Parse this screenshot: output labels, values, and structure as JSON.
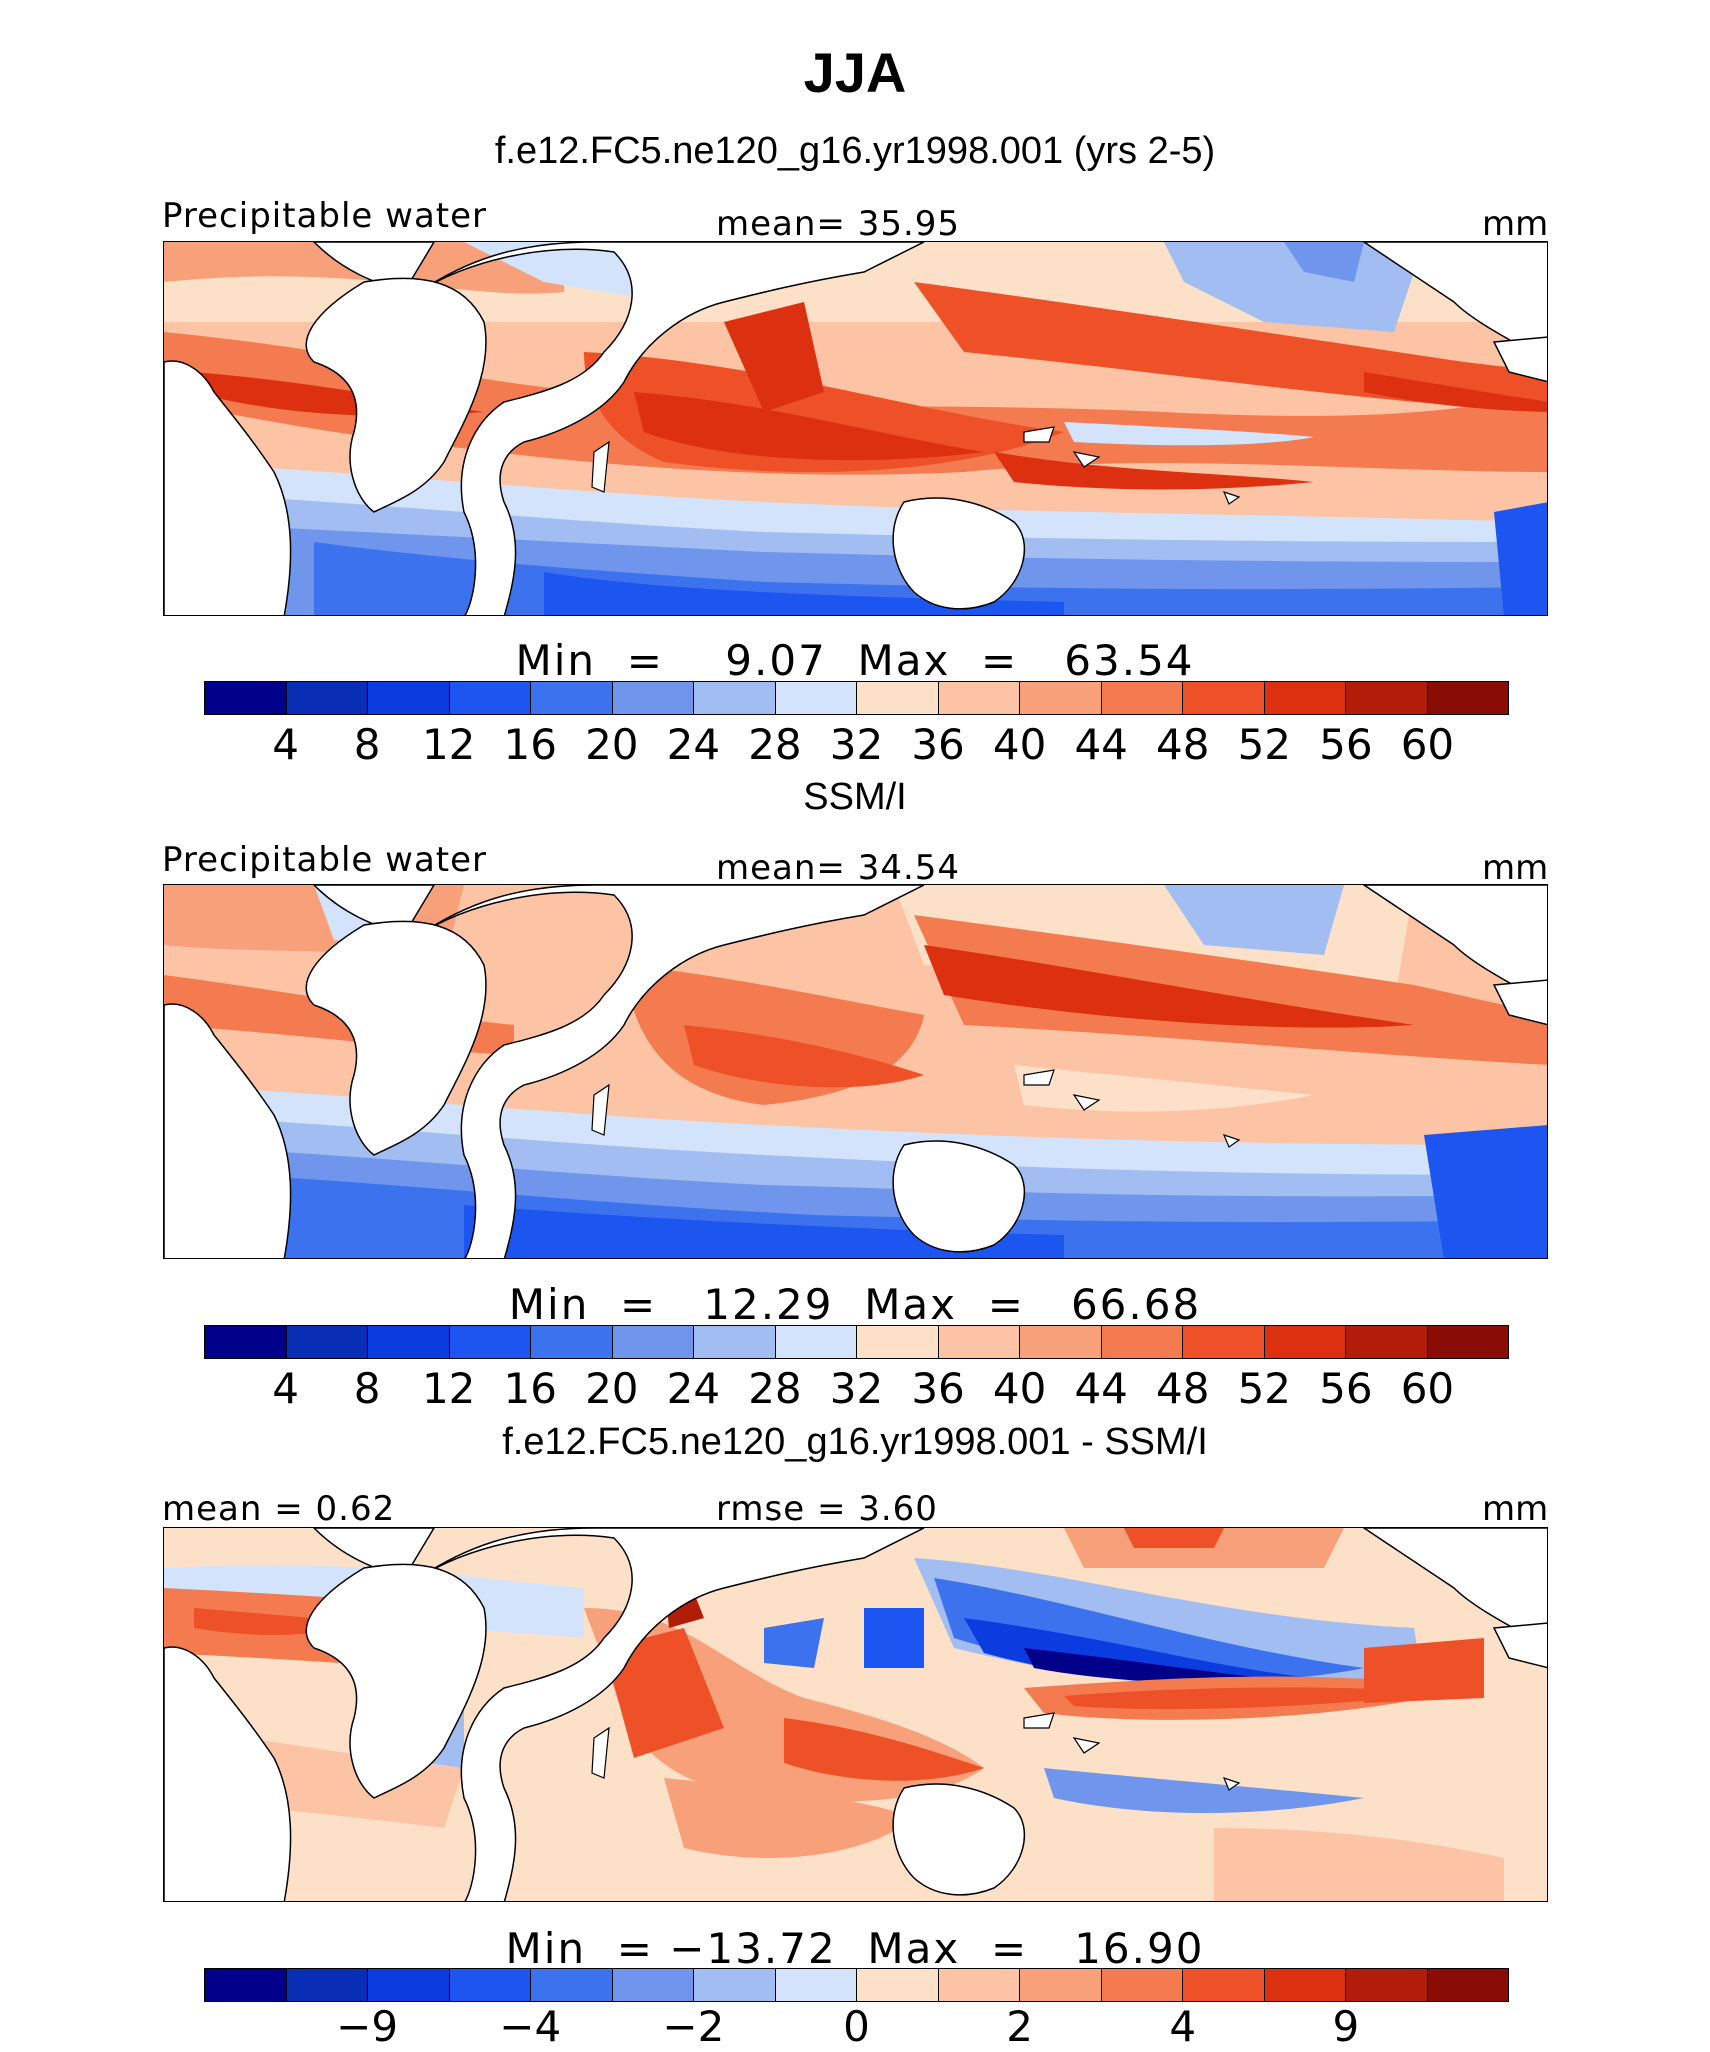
{
  "title": "JJA",
  "colors": {
    "palette": [
      "#00008b",
      "#0a2db5",
      "#0a3ce0",
      "#1c55f0",
      "#3d72ee",
      "#6f96ec",
      "#a2bdf2",
      "#d2e3fb",
      "#fde0c8",
      "#fcc4a4",
      "#f8a07a",
      "#f47b50",
      "#ee5028",
      "#dc3010",
      "#b11d08",
      "#8a0c06"
    ],
    "coast": "#000000",
    "land": "#ffffff"
  },
  "panels": [
    {
      "title": "f.e12.FC5.ne120_g16.yr1998.001 (yrs 2-5)",
      "left_label": "Precipitable water",
      "center_label": "mean=   35.95",
      "units": "mm",
      "minmax": "Min  =    9.07  Max  =   63.54",
      "ticks": [
        "4",
        "8",
        "12",
        "16",
        "20",
        "24",
        "28",
        "32",
        "36",
        "40",
        "44",
        "48",
        "52",
        "56",
        "60"
      ]
    },
    {
      "title": "SSM/I",
      "left_label": "Precipitable water",
      "center_label": "mean=   34.54",
      "units": "mm",
      "minmax": "Min  =   12.29  Max  =   66.68",
      "ticks": [
        "4",
        "8",
        "12",
        "16",
        "20",
        "24",
        "28",
        "32",
        "36",
        "40",
        "44",
        "48",
        "52",
        "56",
        "60"
      ]
    },
    {
      "title": "f.e12.FC5.ne120_g16.yr1998.001 - SSM/I",
      "left_label": "mean =   0.62",
      "center_label": "rmse =    3.60",
      "units": "mm",
      "minmax": "Min  = −13.72  Max  =   16.90",
      "ticks": [
        "−9",
        "−4",
        "−2",
        "0",
        "2",
        "4",
        "9"
      ]
    }
  ]
}
